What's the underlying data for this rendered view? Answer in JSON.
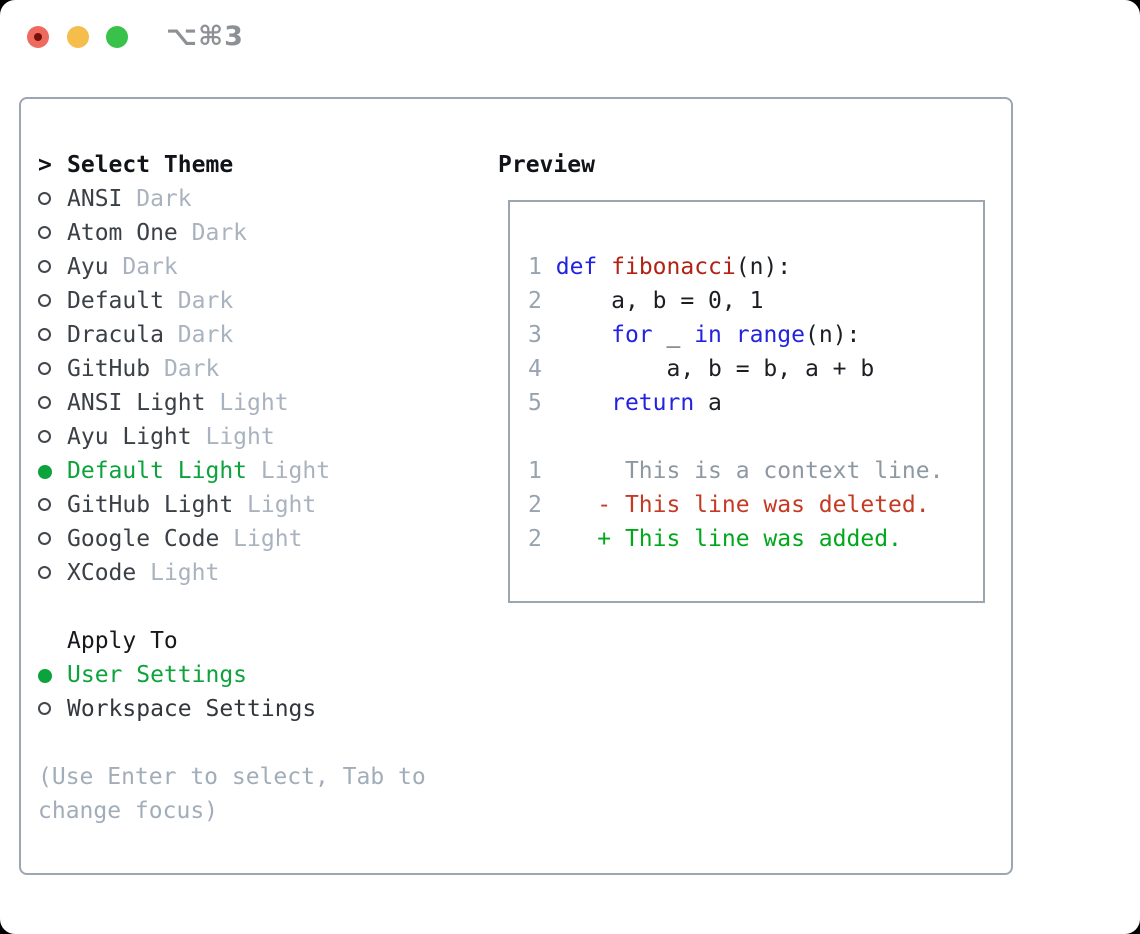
{
  "window": {
    "title": "⌥⌘3"
  },
  "colors": {
    "accent_green": "#0ca33c",
    "added_green": "#02a81c",
    "deleted_red": "#c43a25",
    "keyword_blue": "#2222e0",
    "function_red": "#b02315",
    "muted": "#a9b3bf",
    "border": "#9ca6b1",
    "traffic_red": "#ee6a5e",
    "traffic_yellow": "#f5bd4c",
    "traffic_green": "#38c24a"
  },
  "theme_selector": {
    "prompt": ">",
    "title": "Select Theme",
    "themes": [
      {
        "name": "ANSI",
        "variant": "Dark",
        "selected": false
      },
      {
        "name": "Atom One",
        "variant": "Dark",
        "selected": false
      },
      {
        "name": "Ayu",
        "variant": "Dark",
        "selected": false
      },
      {
        "name": "Default",
        "variant": "Dark",
        "selected": false
      },
      {
        "name": "Dracula",
        "variant": "Dark",
        "selected": false
      },
      {
        "name": "GitHub",
        "variant": "Dark",
        "selected": false
      },
      {
        "name": "ANSI Light",
        "variant": "Light",
        "selected": false
      },
      {
        "name": "Ayu Light",
        "variant": "Light",
        "selected": false
      },
      {
        "name": "Default Light",
        "variant": "Light",
        "selected": true
      },
      {
        "name": "GitHub Light",
        "variant": "Light",
        "selected": false
      },
      {
        "name": "Google Code",
        "variant": "Light",
        "selected": false
      },
      {
        "name": "XCode",
        "variant": "Light",
        "selected": false
      }
    ]
  },
  "apply_to": {
    "title": "Apply To",
    "options": [
      {
        "name": "User Settings",
        "selected": true
      },
      {
        "name": "Workspace Settings",
        "selected": false
      }
    ]
  },
  "hint_lines": [
    "(Use Enter to select, Tab to",
    "change focus)"
  ],
  "preview": {
    "title": "Preview",
    "code_lines": [
      {
        "num": "1",
        "tokens": [
          [
            "k",
            "def"
          ],
          [
            "p",
            " "
          ],
          [
            "f",
            "fibonacci"
          ],
          [
            "p",
            "(n):"
          ]
        ]
      },
      {
        "num": "2",
        "tokens": [
          [
            "p",
            "    a, b = 0, 1"
          ]
        ]
      },
      {
        "num": "3",
        "tokens": [
          [
            "p",
            "    "
          ],
          [
            "k",
            "for"
          ],
          [
            "p",
            " _ "
          ],
          [
            "k",
            "in"
          ],
          [
            "p",
            " "
          ],
          [
            "k",
            "range"
          ],
          [
            "p",
            "(n):"
          ]
        ]
      },
      {
        "num": "4",
        "tokens": [
          [
            "p",
            "        a, b = b, a + b"
          ]
        ]
      },
      {
        "num": "5",
        "tokens": [
          [
            "p",
            "    "
          ],
          [
            "k",
            "return"
          ],
          [
            "p",
            " a"
          ]
        ]
      }
    ],
    "diff_lines": [
      {
        "num": "1",
        "body": "      This is a context line.",
        "type": "context"
      },
      {
        "num": "2",
        "body": "    - This line was deleted.",
        "type": "deleted"
      },
      {
        "num": "2",
        "body": "    + This line was added.",
        "type": "added"
      }
    ]
  }
}
